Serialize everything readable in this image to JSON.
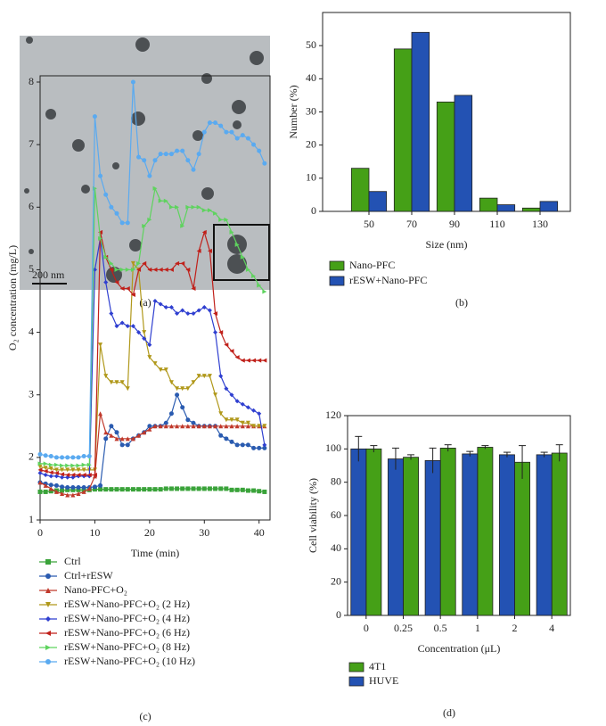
{
  "image_panel": {
    "scale_bar": "200 nm",
    "caption": "(a)"
  },
  "chart_data": [
    {
      "type": "bar",
      "caption": "(b)",
      "x_label": "Size (nm)",
      "y_label": "Number (%)",
      "categories": [
        "50",
        "70",
        "90",
        "110",
        "130"
      ],
      "series": [
        {
          "name": "Nano-PFC",
          "color": "#45a017",
          "values": [
            13,
            49,
            33,
            4,
            1
          ]
        },
        {
          "name": "rESW+Nano-PFC",
          "color": "#2352b3",
          "values": [
            6,
            54,
            35,
            2,
            3
          ]
        }
      ],
      "ylim": [
        0,
        60
      ],
      "yticks": [
        0,
        10,
        20,
        30,
        40,
        50
      ]
    },
    {
      "type": "line",
      "caption": "(c)",
      "x_label": "Time (min)",
      "y_label": "O₂ concentration (mg/L)",
      "x": [
        0,
        1,
        2,
        3,
        4,
        5,
        6,
        7,
        8,
        9,
        10,
        11,
        12,
        13,
        14,
        15,
        16,
        17,
        18,
        19,
        20,
        21,
        22,
        23,
        24,
        25,
        26,
        27,
        28,
        29,
        30,
        31,
        32,
        33,
        34,
        35,
        36,
        37,
        38,
        39,
        40,
        41
      ],
      "xlim": [
        0,
        42
      ],
      "xticks": [
        0,
        10,
        20,
        30,
        40
      ],
      "ylim": [
        1,
        8.1
      ],
      "yticks": [
        1,
        2,
        3,
        4,
        5,
        6,
        7,
        8
      ],
      "series": [
        {
          "name": "Ctrl",
          "color": "#3aa33a",
          "marker": "square",
          "values": [
            1.45,
            1.45,
            1.46,
            1.47,
            1.47,
            1.48,
            1.48,
            1.48,
            1.48,
            1.48,
            1.49,
            1.49,
            1.49,
            1.49,
            1.49,
            1.49,
            1.49,
            1.49,
            1.49,
            1.49,
            1.49,
            1.49,
            1.49,
            1.5,
            1.5,
            1.5,
            1.5,
            1.5,
            1.5,
            1.5,
            1.5,
            1.5,
            1.5,
            1.5,
            1.5,
            1.48,
            1.48,
            1.48,
            1.47,
            1.47,
            1.46,
            1.45
          ]
        },
        {
          "name": "Ctrl+rESW",
          "color": "#2a5bb0",
          "marker": "circle",
          "values": [
            1.6,
            1.58,
            1.56,
            1.55,
            1.53,
            1.52,
            1.52,
            1.52,
            1.52,
            1.52,
            1.53,
            1.55,
            2.3,
            2.5,
            2.4,
            2.2,
            2.2,
            2.3,
            2.35,
            2.4,
            2.5,
            2.5,
            2.5,
            2.55,
            2.7,
            3.0,
            2.8,
            2.6,
            2.55,
            2.5,
            2.5,
            2.5,
            2.5,
            2.35,
            2.3,
            2.25,
            2.2,
            2.2,
            2.2,
            2.15,
            2.15,
            2.15
          ]
        },
        {
          "name": "Nano-PFC+O₂",
          "color": "#c0392b",
          "marker": "triangle-up",
          "values": [
            1.6,
            1.55,
            1.5,
            1.45,
            1.42,
            1.4,
            1.4,
            1.42,
            1.45,
            1.5,
            1.7,
            2.7,
            2.4,
            2.35,
            2.3,
            2.3,
            2.3,
            2.3,
            2.35,
            2.4,
            2.45,
            2.5,
            2.5,
            2.5,
            2.5,
            2.5,
            2.5,
            2.5,
            2.5,
            2.5,
            2.5,
            2.5,
            2.5,
            2.5,
            2.5,
            2.5,
            2.5,
            2.5,
            2.5,
            2.5,
            2.5,
            2.5
          ]
        },
        {
          "name": "rESW+Nano-PFC+O₂ (2 Hz)",
          "color": "#b0981a",
          "marker": "triangle-down",
          "values": [
            1.85,
            1.83,
            1.82,
            1.8,
            1.8,
            1.8,
            1.8,
            1.8,
            1.8,
            1.8,
            1.8,
            3.8,
            3.3,
            3.2,
            3.2,
            3.2,
            3.1,
            5.1,
            5.0,
            4.0,
            3.6,
            3.5,
            3.4,
            3.4,
            3.2,
            3.1,
            3.1,
            3.1,
            3.2,
            3.3,
            3.3,
            3.3,
            3.0,
            2.7,
            2.6,
            2.6,
            2.6,
            2.55,
            2.55,
            2.5,
            2.5,
            2.5
          ]
        },
        {
          "name": "rESW+Nano-PFC+O₂ (4 Hz)",
          "color": "#2f3fd0",
          "marker": "diamond",
          "values": [
            1.75,
            1.72,
            1.7,
            1.7,
            1.68,
            1.68,
            1.68,
            1.7,
            1.7,
            1.7,
            5.0,
            5.5,
            4.8,
            4.3,
            4.1,
            4.15,
            4.1,
            4.1,
            4.0,
            3.9,
            3.8,
            4.5,
            4.45,
            4.4,
            4.4,
            4.3,
            4.35,
            4.3,
            4.3,
            4.35,
            4.4,
            4.35,
            4.0,
            3.3,
            3.1,
            3.0,
            2.9,
            2.85,
            2.8,
            2.75,
            2.7,
            2.2
          ]
        },
        {
          "name": "rESW+Nano-PFC+O₂ (6 Hz)",
          "color": "#c0201a",
          "marker": "triangle-left",
          "values": [
            1.8,
            1.78,
            1.76,
            1.75,
            1.73,
            1.72,
            1.72,
            1.72,
            1.72,
            1.72,
            1.72,
            5.6,
            5.2,
            5.0,
            4.8,
            4.7,
            4.7,
            4.6,
            5.0,
            5.1,
            5.0,
            5.0,
            5.0,
            5.0,
            5.0,
            5.1,
            5.1,
            5.0,
            4.7,
            5.3,
            5.6,
            5.3,
            4.3,
            4.0,
            3.8,
            3.7,
            3.6,
            3.55,
            3.55,
            3.55,
            3.55,
            3.55
          ]
        },
        {
          "name": "rESW+Nano-PFC+O₂ (8 Hz)",
          "color": "#5ed35e",
          "marker": "triangle-right",
          "values": [
            1.9,
            1.9,
            1.88,
            1.88,
            1.87,
            1.87,
            1.87,
            1.87,
            1.88,
            1.88,
            6.3,
            5.5,
            5.2,
            5.1,
            5.0,
            5.0,
            5.0,
            5.0,
            5.1,
            5.7,
            5.8,
            6.3,
            6.1,
            6.1,
            6.0,
            6.0,
            5.7,
            6.0,
            6.0,
            6.0,
            5.95,
            5.95,
            5.9,
            5.8,
            5.8,
            5.6,
            5.4,
            5.2,
            5.0,
            4.9,
            4.75,
            4.65
          ]
        },
        {
          "name": "rESW+Nano-PFC+O₂ (10 Hz)",
          "color": "#5aaaf0",
          "marker": "circle",
          "values": [
            2.05,
            2.03,
            2.02,
            2.0,
            2.0,
            2.0,
            2.0,
            2.0,
            2.02,
            2.02,
            7.45,
            6.5,
            6.2,
            6.0,
            5.9,
            5.75,
            5.75,
            8.0,
            6.8,
            6.75,
            6.5,
            6.75,
            6.85,
            6.85,
            6.85,
            6.9,
            6.9,
            6.75,
            6.6,
            6.85,
            7.2,
            7.35,
            7.35,
            7.3,
            7.2,
            7.2,
            7.1,
            7.15,
            7.1,
            7.0,
            6.9,
            6.7
          ]
        }
      ]
    },
    {
      "type": "bar",
      "caption": "(d)",
      "x_label": "Concentration (μL)",
      "y_label": "Cell viability (%)",
      "categories": [
        "0",
        "0.25",
        "0.5",
        "1",
        "2",
        "4"
      ],
      "series": [
        {
          "name": "4T1",
          "color": "#45a017",
          "values": [
            100,
            95,
            100.5,
            101,
            92,
            97.5
          ],
          "errors": [
            2,
            1.5,
            2,
            1,
            10,
            5
          ]
        },
        {
          "name": "HUVE",
          "color": "#2352b3",
          "values": [
            100,
            94,
            93,
            97,
            96.5,
            96.5
          ],
          "errors": [
            7.5,
            6.5,
            7.5,
            1.5,
            1.5,
            1.5
          ]
        }
      ],
      "ylim": [
        0,
        120
      ],
      "yticks": [
        0,
        20,
        40,
        60,
        80,
        100,
        120
      ]
    }
  ]
}
